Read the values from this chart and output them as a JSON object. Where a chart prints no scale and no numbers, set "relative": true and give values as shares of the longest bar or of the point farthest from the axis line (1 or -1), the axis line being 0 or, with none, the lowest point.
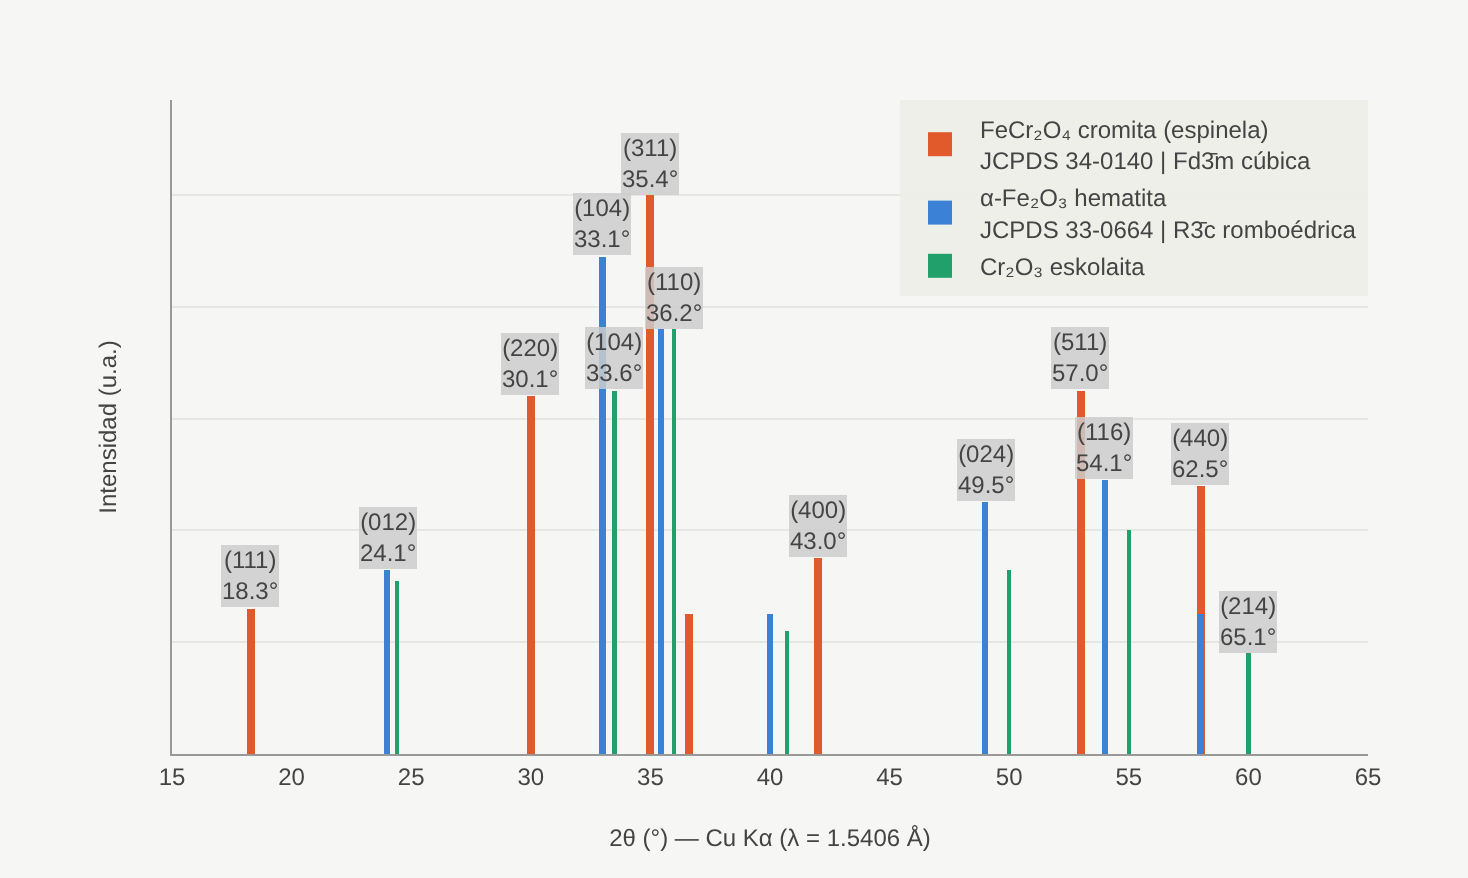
{
  "chart_data": {
    "type": "bar",
    "relative": true,
    "xlabel": "2θ (°) — Cu Kα (λ = 1.5406 Å)",
    "ylabel": "Intensidad (u.a.)",
    "xlim": [
      15,
      65
    ],
    "xticks": [
      15,
      20,
      25,
      30,
      35,
      40,
      45,
      50,
      55,
      60,
      65
    ],
    "grid": "y",
    "legend": "top right",
    "series": [
      {
        "name": "FeCr₂O₄ cromita (espinela)\nJCPDS 34-0140 | Fd3̄m cúbica",
        "color": "#e05a2b",
        "x": [
          18.3,
          30,
          35,
          36.6,
          42,
          53,
          58
        ],
        "values": [
          0.26,
          0.64,
          1.0,
          0.25,
          0.35,
          0.65,
          0.48
        ]
      },
      {
        "name": "α-Fe₂O₃ hematita\nJCPDS 33-0664 | R3̄c romboédrica",
        "color": "#3b82d6",
        "x": [
          24,
          33,
          35.45,
          40,
          49,
          54,
          58
        ],
        "values": [
          0.33,
          0.89,
          0.76,
          0.25,
          0.45,
          0.49,
          0.25
        ]
      },
      {
        "name": "Cr₂O₃ eskolaita",
        "color": "#22a06b",
        "x": [
          24.4,
          33.5,
          36,
          40.7,
          50,
          55,
          60
        ],
        "values": [
          0.31,
          0.65,
          0.76,
          0.22,
          0.33,
          0.4,
          0.18
        ]
      }
    ],
    "annotations": [
      {
        "text": "(111)\n18.3°",
        "x": 18.3,
        "y": 0.26
      },
      {
        "text": "(012)\n24.1°",
        "x": 24,
        "y": 0.33
      },
      {
        "text": "(220)\n30.1°",
        "x": 30,
        "y": 0.64
      },
      {
        "text": "(104)\n33.1°",
        "x": 33,
        "y": 0.89
      },
      {
        "text": "(104)\n33.6°",
        "x": 33.5,
        "y": 0.65
      },
      {
        "text": "(311)\n35.4°",
        "x": 35,
        "y": 1.0
      },
      {
        "text": "(110)\n36.2°",
        "x": 36,
        "y": 0.76
      },
      {
        "text": "(400)\n43.0°",
        "x": 42,
        "y": 0.35
      },
      {
        "text": "(024)\n49.5°",
        "x": 49,
        "y": 0.45
      },
      {
        "text": "(511)\n57.0°",
        "x": 53,
        "y": 0.65
      },
      {
        "text": "(116)\n54.1°",
        "x": 54,
        "y": 0.49
      },
      {
        "text": "(440)\n62.5°",
        "x": 58,
        "y": 0.48
      },
      {
        "text": "(214)\n65.1°",
        "x": 60,
        "y": 0.18
      }
    ]
  }
}
